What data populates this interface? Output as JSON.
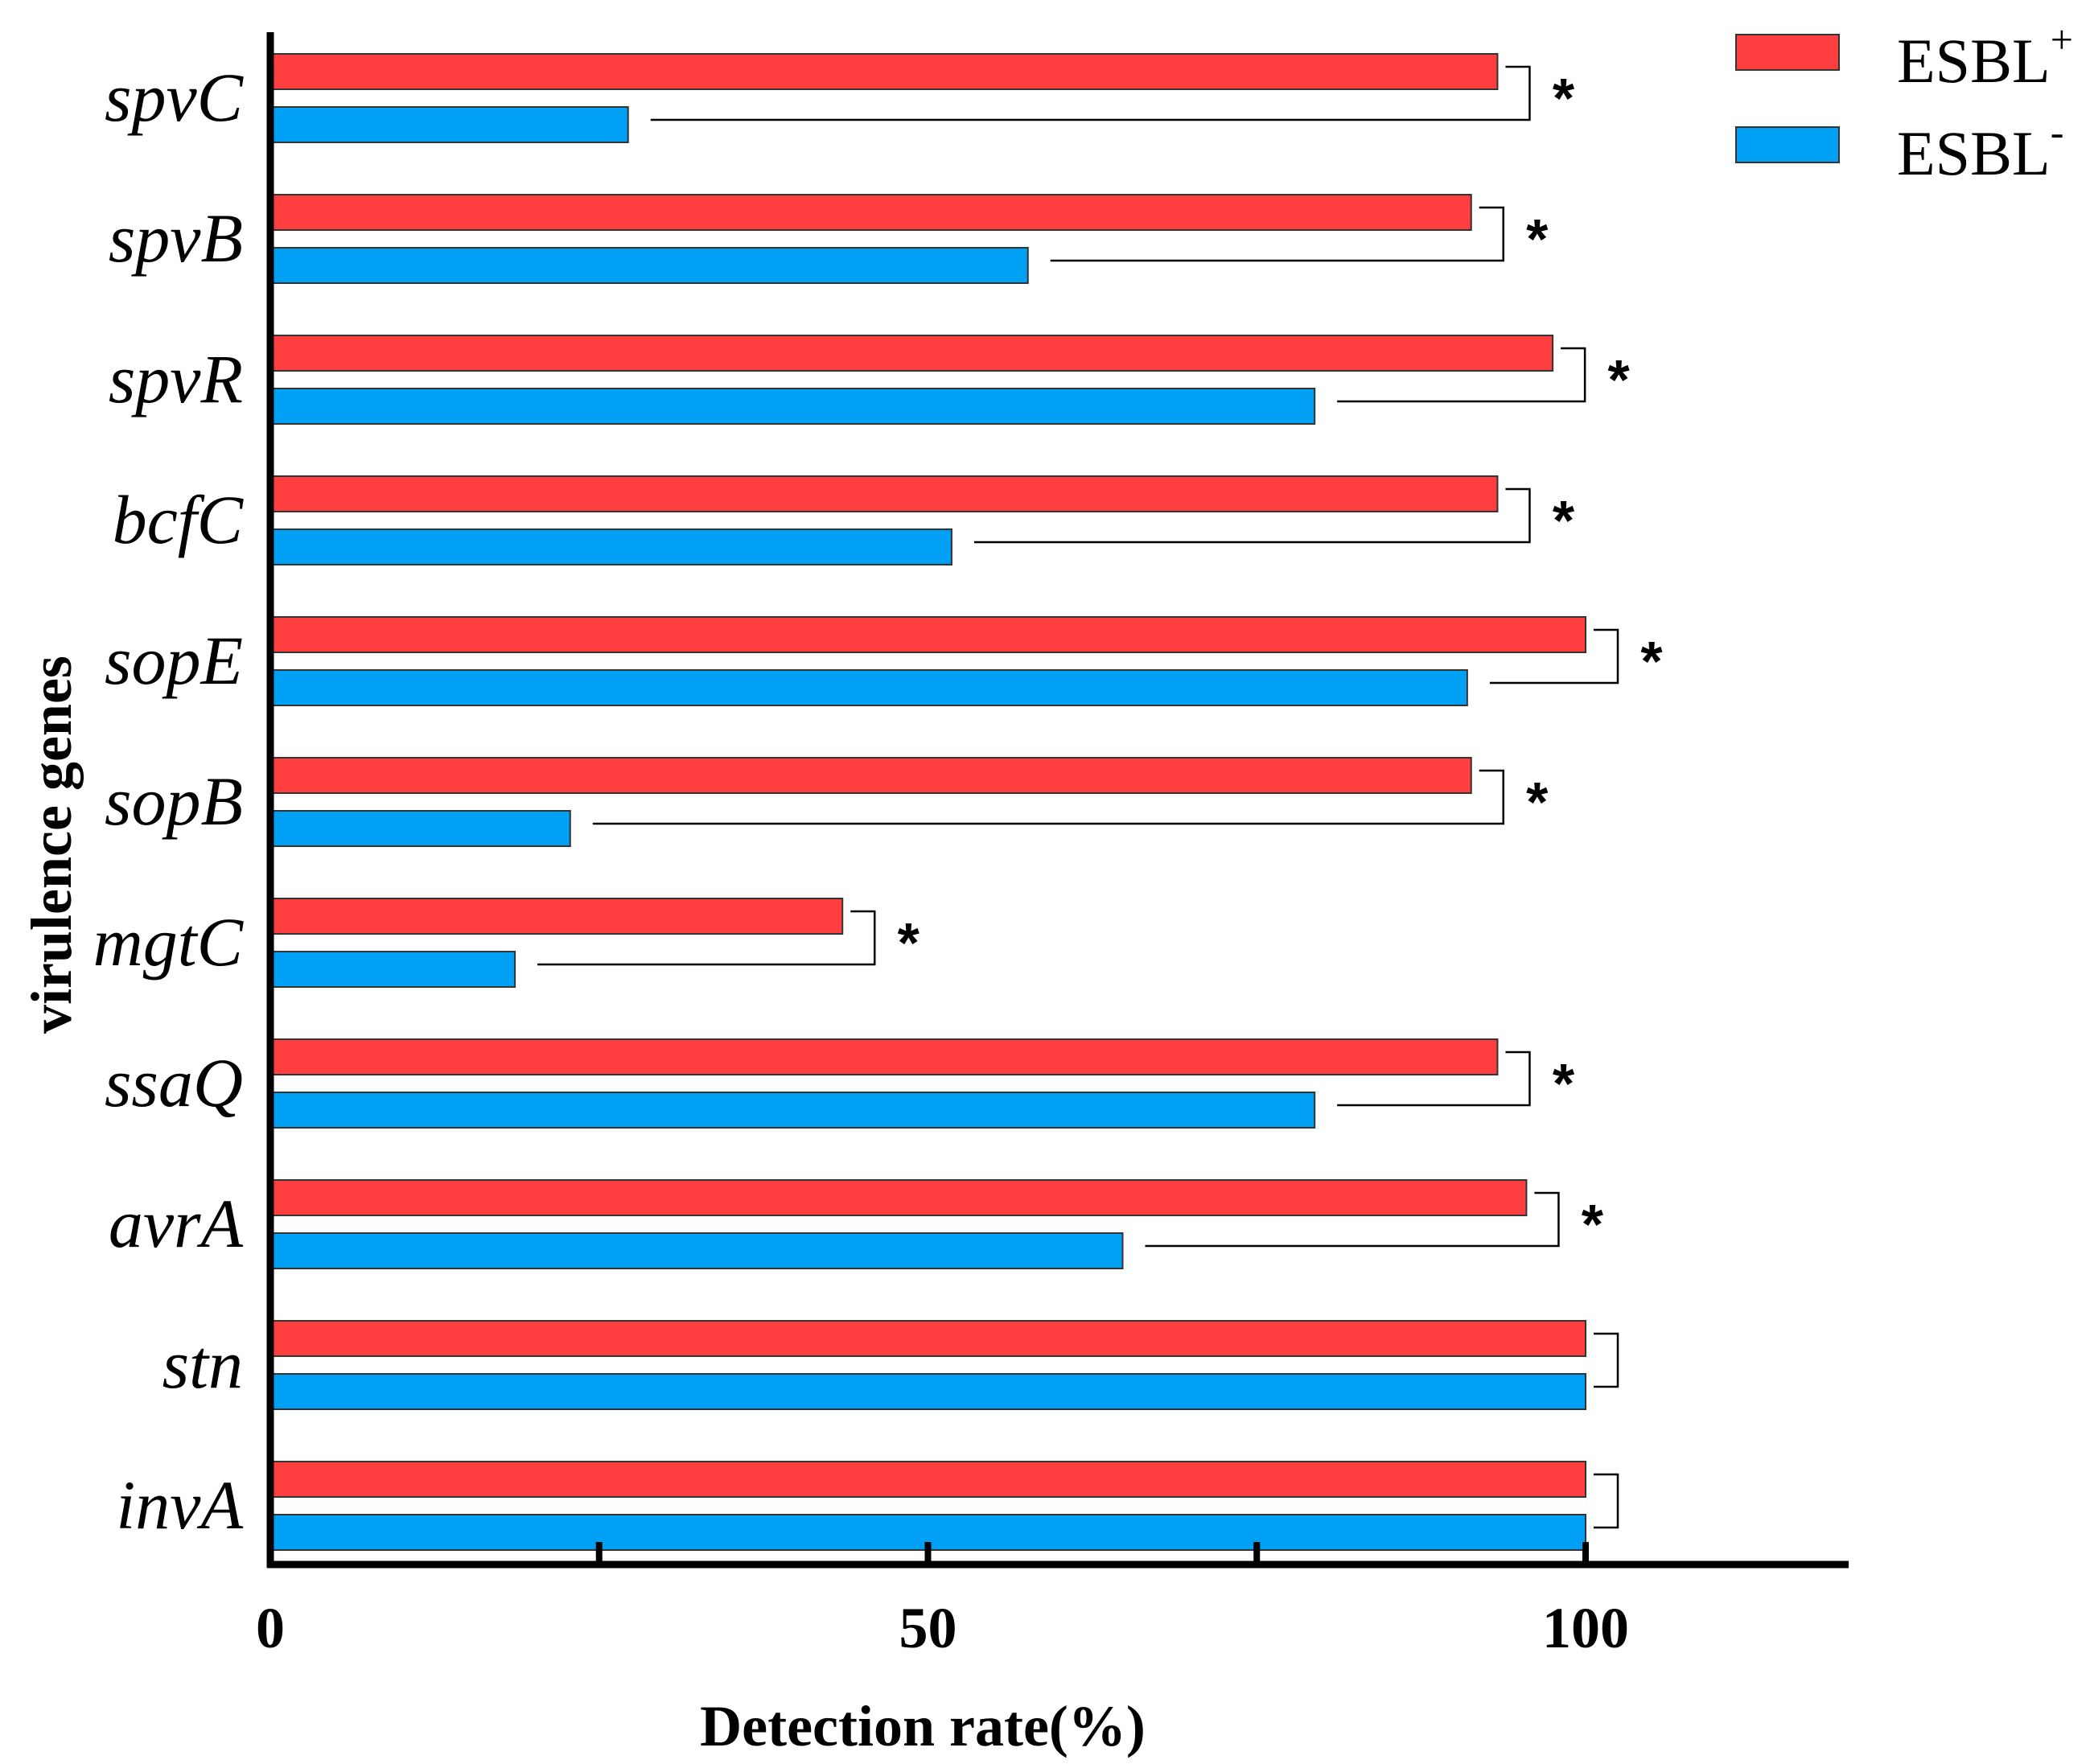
{
  "chart_data": {
    "type": "bar",
    "orientation": "horizontal",
    "title": "",
    "xlabel": "Detection rate(%)",
    "ylabel": "virulence genes",
    "xlim": [
      0,
      120
    ],
    "xticks": [
      0,
      50,
      100
    ],
    "categories": [
      "spvC",
      "spvB",
      "spvR",
      "bcfC",
      "sopE",
      "sopB",
      "mgtC",
      "ssaQ",
      "avrA",
      "stn",
      "invA"
    ],
    "series": [
      {
        "name": "ESBL+",
        "legend_base": "ESBL",
        "legend_sup": "+",
        "color": "#ff3f3f",
        "values": [
          93.3,
          91.3,
          97.5,
          93.3,
          100,
          91.3,
          43.5,
          93.3,
          95.5,
          100,
          100
        ]
      },
      {
        "name": "ESBL-",
        "legend_base": "ESBL",
        "legend_sup": "-",
        "color": "#00a0f5",
        "values": [
          27.2,
          57.6,
          79.4,
          51.8,
          91,
          22.8,
          18.6,
          79.4,
          64.8,
          100,
          100
        ]
      }
    ],
    "significance": [
      "*",
      "*",
      "*",
      "*",
      "*",
      "*",
      "*",
      "*",
      "*",
      "",
      ""
    ]
  }
}
